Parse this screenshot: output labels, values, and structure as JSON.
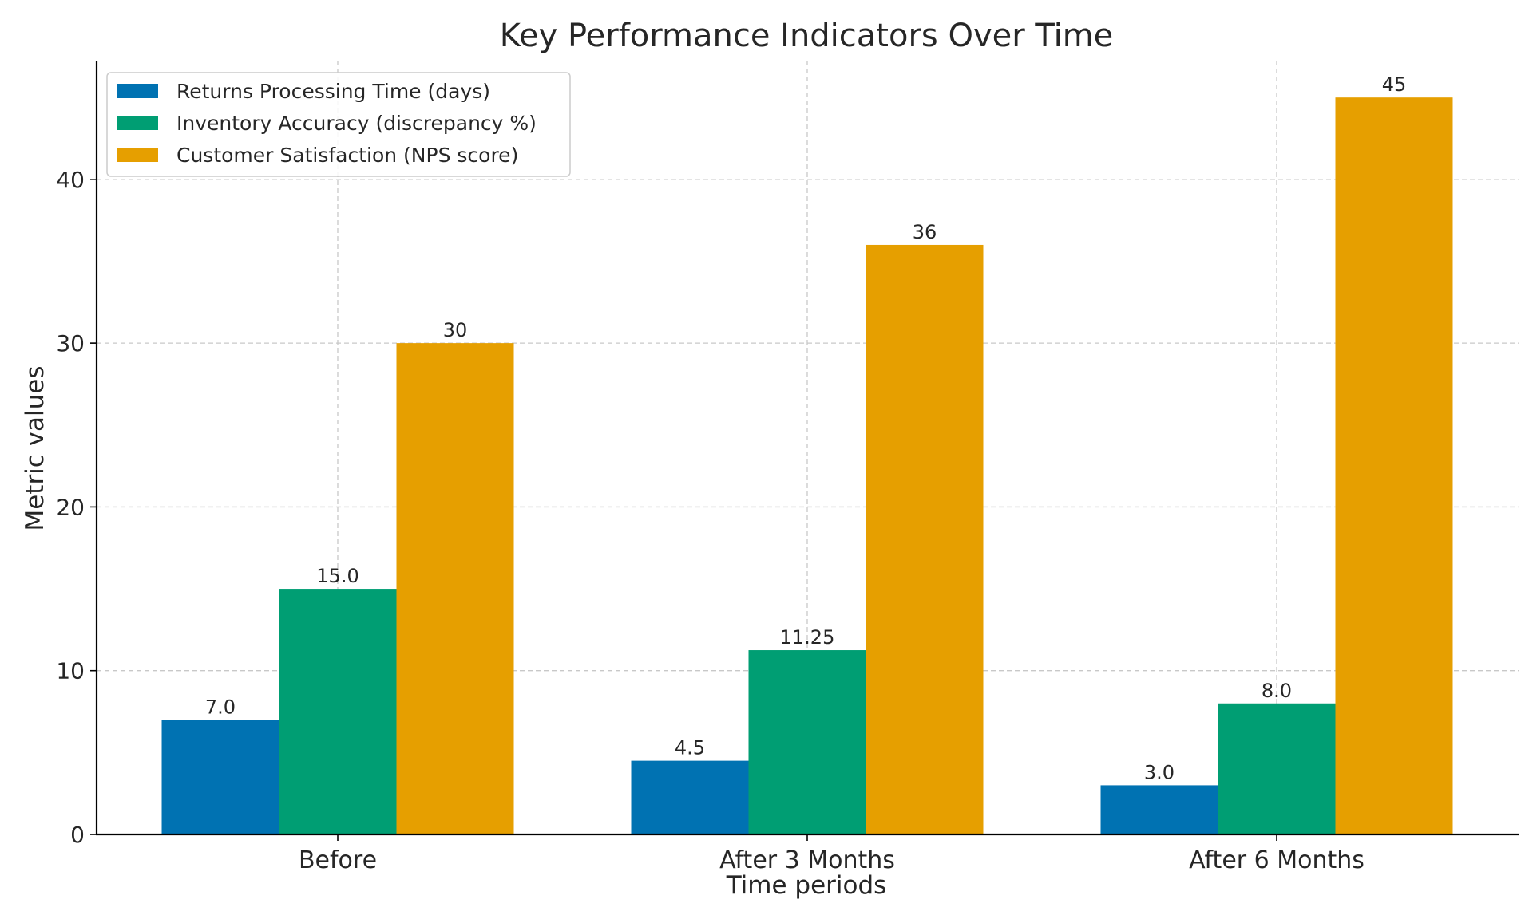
{
  "chart_data": {
    "type": "bar",
    "title": "Key Performance Indicators Over Time",
    "xlabel": "Time periods",
    "ylabel": "Metric values",
    "categories": [
      "Before",
      "After 3 Months",
      "After 6 Months"
    ],
    "ylim": [
      0,
      47.25
    ],
    "yticks": [
      0,
      10,
      20,
      30,
      40
    ],
    "grid": true,
    "legend_position": "top-left",
    "series": [
      {
        "name": "Returns Processing Time (days)",
        "color": "#0072b2",
        "values": [
          7.0,
          4.5,
          3.0
        ],
        "labels": [
          "7.0",
          "4.5",
          "3.0"
        ]
      },
      {
        "name": "Inventory Accuracy (discrepancy %)",
        "color": "#009e73",
        "values": [
          15.0,
          11.25,
          8.0
        ],
        "labels": [
          "15.0",
          "11.25",
          "8.0"
        ]
      },
      {
        "name": "Customer Satisfaction (NPS score)",
        "color": "#e69f00",
        "values": [
          30,
          36,
          45
        ],
        "labels": [
          "30",
          "36",
          "45"
        ]
      }
    ]
  }
}
